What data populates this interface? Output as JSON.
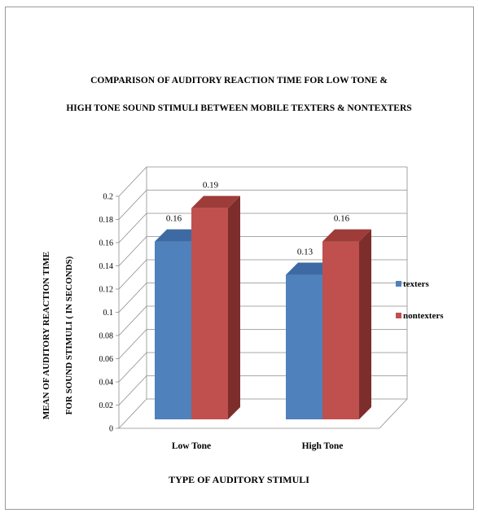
{
  "chart_data": {
    "type": "bar",
    "title_line1": "COMPARISON OF AUDITORY REACTION TIME FOR LOW TONE &",
    "title_line2": "HIGH TONE SOUND STIMULI BETWEEN MOBILE TEXTERS & NONTEXTERS",
    "ylabel_line1": "MEAN OF AUDITORY REACTION TIME",
    "ylabel_line2": "FOR SOUND STIMULI ( IN SECONDS)",
    "xlabel": "TYPE OF AUDITORY STIMULI",
    "categories": [
      "Low Tone",
      "High Tone"
    ],
    "series": [
      {
        "name": "texters",
        "values": [
          0.16,
          0.13
        ],
        "labels": [
          "0.16",
          "0.13"
        ],
        "color": "#4f81bd",
        "top_color": "#3e6aa3",
        "side_color": "#2f5486"
      },
      {
        "name": "nontexters",
        "values": [
          0.19,
          0.16
        ],
        "labels": [
          "0.19",
          "0.16"
        ],
        "color": "#c0504d",
        "top_color": "#9e3c3a",
        "side_color": "#7d2e2c"
      }
    ],
    "ylim": [
      0,
      0.2
    ],
    "y_ticks": [
      "0",
      "0.02",
      "0.04",
      "0.06",
      "0.08",
      "0.1",
      "0.12",
      "0.14",
      "0.16",
      "0.18",
      "0.2"
    ],
    "grid": true,
    "legend_position": "right",
    "three_d": true
  }
}
